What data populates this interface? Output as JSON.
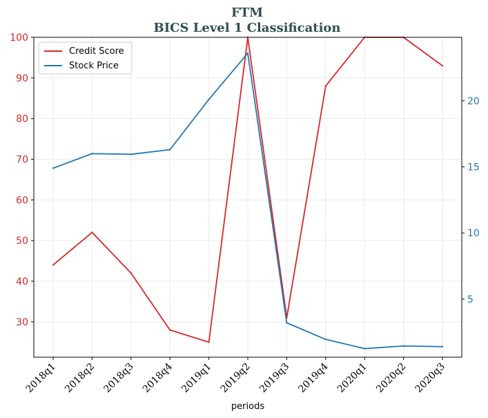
{
  "chart_data": {
    "type": "line",
    "title": "FTM",
    "subtitle": "BICS Level 1 Classification",
    "xlabel": "periods",
    "x": [
      "2018q1",
      "2018q2",
      "2018q3",
      "2018q4",
      "2019q1",
      "2019q2",
      "2019q3",
      "2019q4",
      "2020q1",
      "2020q2",
      "2020q3"
    ],
    "series": [
      {
        "name": "Credit Score",
        "axis": "left",
        "color": "#d62728",
        "values": [
          44,
          52,
          42,
          28,
          25,
          100,
          31,
          88,
          100,
          100,
          93
        ]
      },
      {
        "name": "Stock Price",
        "axis": "right",
        "color": "#1f77b4",
        "values": [
          14.9,
          16.0,
          15.95,
          16.3,
          20.1,
          23.6,
          3.2,
          1.95,
          1.25,
          1.45,
          1.4
        ]
      }
    ],
    "ylim_left": [
      21.3,
      100
    ],
    "yticks_left": [
      30,
      40,
      50,
      60,
      70,
      80,
      90,
      100
    ],
    "ylim_right": [
      0.6,
      24.8
    ],
    "yticks_right": [
      5,
      10,
      15,
      20
    ],
    "grid": true,
    "legend": "top-left"
  }
}
